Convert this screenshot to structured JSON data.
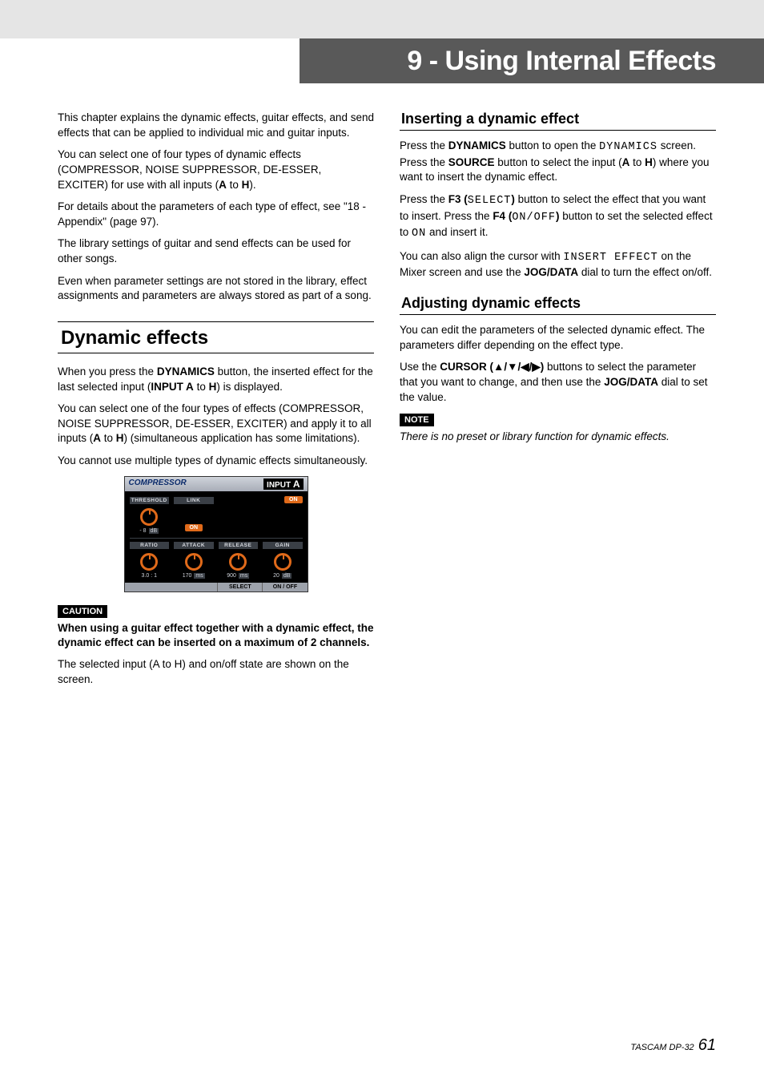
{
  "chapter_header": "9 - Using Internal Effects",
  "left_col": {
    "intro": [
      "This chapter explains the dynamic effects, guitar effects, and send effects that can be applied to individual mic and guitar inputs.",
      "You can select one of four types of dynamic effects (COMPRESSOR, NOISE SUPPRESSOR, DE-ESSER, EXCITER) for use with all inputs (",
      "For details about the parameters of each type of effect, see \"18 - Appendix\" (page 97).",
      "The library settings of guitar and send effects can be used for other songs.",
      "Even when parameter settings are not stored in the library, effect assignments and parameters are always stored as part of a song."
    ],
    "intro_bold_A": "A",
    "intro_to": " to ",
    "intro_bold_H": "H",
    "intro_tail": ").",
    "section_title": "Dynamic effects",
    "dyn_p1_a": "When you press the ",
    "dyn_p1_b": "DYNAMICS",
    "dyn_p1_c": " button, the inserted effect for the last selected input (",
    "dyn_p1_d": "INPUT A",
    "dyn_p1_e": " to ",
    "dyn_p1_f": "H",
    "dyn_p1_g": ") is displayed.",
    "dyn_p2_a": "You can select one of the four types of effects (COMPRESSOR, NOISE SUPPRESSOR, DE-ESSER, EXCITER) and apply it to all inputs (",
    "dyn_p2_b": "A",
    "dyn_p2_c": " to ",
    "dyn_p2_d": "H",
    "dyn_p2_e": ") (simultaneous application has some limitations).",
    "dyn_p3": "You cannot use multiple types of dynamic effects simultaneously.",
    "caution_label": "CAUTION",
    "caution_text": "When using a guitar effect together with a dynamic effect, the dynamic effect can be inserted on a maximum of 2 channels.",
    "after_caution": "The selected input (A to H) and on/off state are shown on the screen."
  },
  "right_col": {
    "sub1_title": "Inserting a dynamic effect",
    "s1p1_a": "Press the ",
    "s1p1_b": "DYNAMICS",
    "s1p1_c": " button to open the ",
    "s1p1_lcd1": "DYNAMICS",
    "s1p1_d": " screen. Press the ",
    "s1p1_e": "SOURCE",
    "s1p1_f": " button to select the input (",
    "s1p1_g": "A",
    "s1p1_h": " to ",
    "s1p1_i": "H",
    "s1p1_j": ") where you want to insert the dynamic effect.",
    "s1p2_a": "Press the ",
    "s1p2_b": "F3 (",
    "s1p2_lcd": "SELECT",
    "s1p2_c": ")",
    "s1p2_d": " button to select the effect that you want to insert. Press the ",
    "s1p2_e": "F4 (",
    "s1p2_lcd2": "ON/OFF",
    "s1p2_f": ")",
    "s1p2_g": " button to set the selected effect to ",
    "s1p2_lcd3": "ON",
    "s1p2_h": " and insert it.",
    "s1p3_a": "You can also align the cursor with ",
    "s1p3_lcd": "INSERT EFFECT",
    "s1p3_b": " on the Mixer screen and use the ",
    "s1p3_c": "JOG/DATA",
    "s1p3_d": " dial to turn the effect on/off.",
    "sub2_title": "Adjusting dynamic effects",
    "s2p1": "You can edit the parameters of the selected dynamic effect. The parameters differ depending on the effect type.",
    "s2p2_a": "Use the ",
    "s2p2_b": "CURSOR (",
    "s2p2_arrows": "▲/▼/◀/▶",
    "s2p2_c": ")",
    "s2p2_d": " buttons to select the parameter that you want to change, and then use the ",
    "s2p2_e": "JOG/DATA",
    "s2p2_f": " dial to set the value.",
    "note_label": "NOTE",
    "note_text": "There is no preset or library function for dynamic effects."
  },
  "compressor_screenshot": {
    "title": "COMPRESSOR",
    "input_label": "INPUT",
    "input_ch": "A",
    "on_badge": "ON",
    "row1": {
      "threshold": {
        "label": "THRESHOLD",
        "value": "- 8",
        "unit": "dB"
      },
      "link": {
        "label": "LINK",
        "value": "ON"
      }
    },
    "row2": {
      "ratio": {
        "label": "RATIO",
        "value": "3.0 : 1",
        "unit": ""
      },
      "attack": {
        "label": "ATTACK",
        "value": "170",
        "unit": "ms"
      },
      "release": {
        "label": "RELEASE",
        "value": "900",
        "unit": "ms"
      },
      "gain": {
        "label": "GAIN",
        "value": "20",
        "unit": "dB"
      }
    },
    "footer": {
      "select": "SELECT",
      "onoff": "ON / OFF"
    },
    "colors": {
      "knob_orange": "#e06a1a",
      "header_blue": "#0a2a6a",
      "panel_gray": "#3a3f46",
      "footer_gray": "#9da2ab"
    }
  },
  "footer": {
    "product": "TASCAM DP-32",
    "page": "61"
  }
}
